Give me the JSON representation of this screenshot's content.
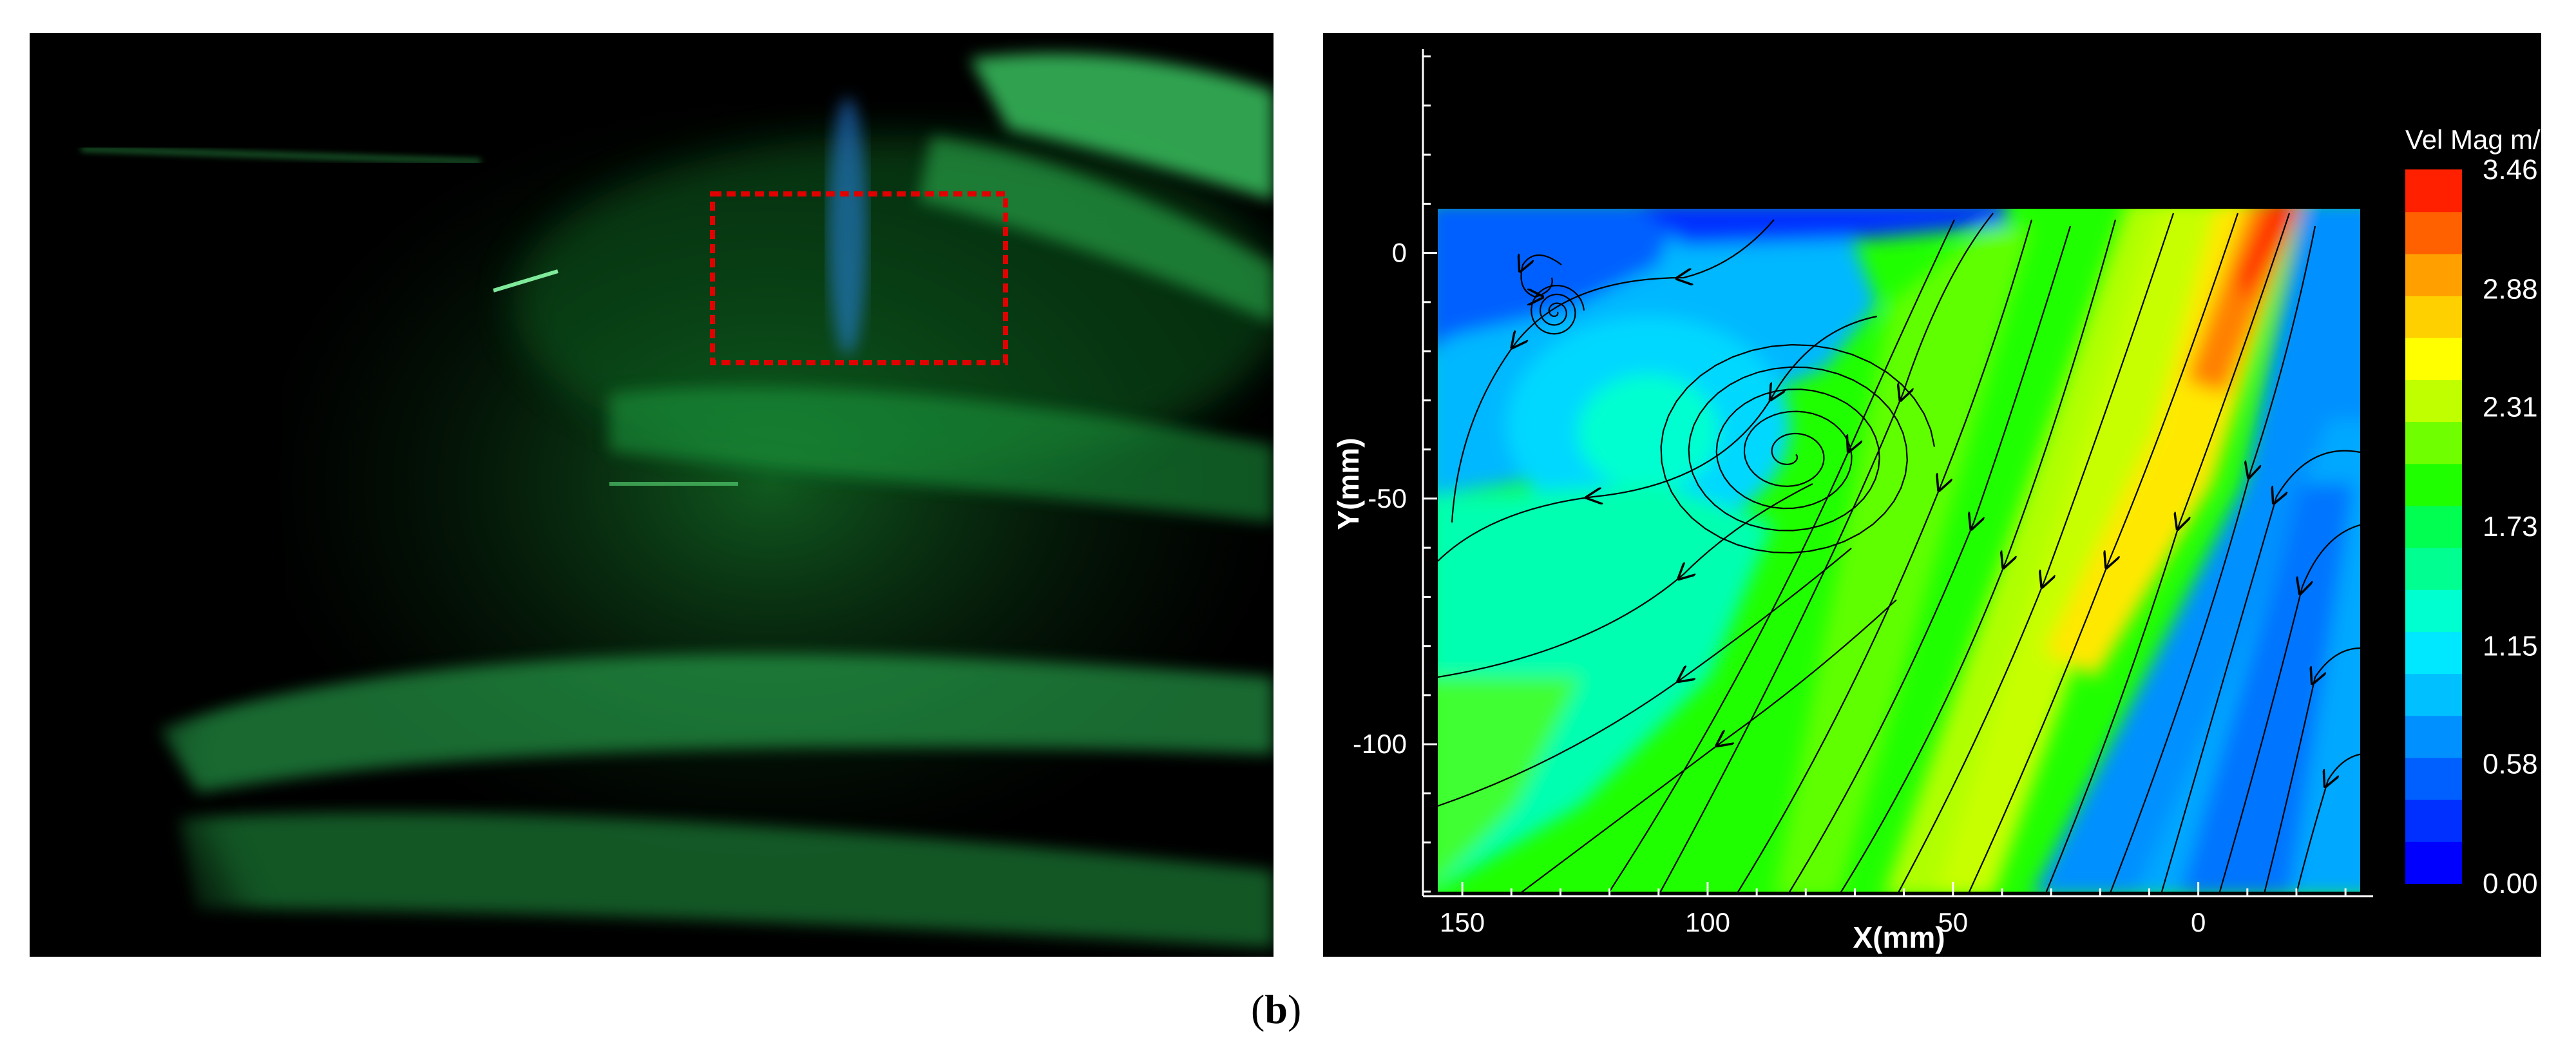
{
  "panel_label": {
    "open": "(",
    "letter": "b",
    "close": ")"
  },
  "photo": {
    "subject": "green laser-sheet flow visualization photograph",
    "roi_box_color": "#e00000"
  },
  "chart_data": {
    "type": "contour",
    "title": "",
    "xlabel": "X(mm)",
    "ylabel": "Y(mm)",
    "xlim": [
      155,
      -33
    ],
    "ylim": [
      -130,
      9
    ],
    "x_axis_reversed": true,
    "xticks": [
      150,
      100,
      50,
      0
    ],
    "yticks": [
      0,
      -50,
      -100
    ],
    "colorbar": {
      "title": "Vel Mag",
      "unit": "m/s",
      "levels": [
        "3.46",
        "2.88",
        "2.31",
        "1.73",
        "1.15",
        "0.58",
        "0.00"
      ],
      "vmin": 0.0,
      "vmax": 3.46,
      "colors": [
        "#0000ff",
        "#0030ff",
        "#0060ff",
        "#0090ff",
        "#00c0ff",
        "#00e8ff",
        "#00ffd0",
        "#00ff90",
        "#00ff50",
        "#20ff00",
        "#70ff00",
        "#c0ff00",
        "#ffff00",
        "#ffd000",
        "#ffa000",
        "#ff6000",
        "#ff2000"
      ]
    },
    "features": {
      "vortex_center": [
        83,
        -41
      ],
      "small_vortex": [
        131,
        -12
      ],
      "high_speed_jet": "band from (-10, 5) to (60, -130)"
    },
    "colors": {
      "background": "#000000",
      "axis": "#ffffff",
      "streamline": "#000000"
    }
  }
}
